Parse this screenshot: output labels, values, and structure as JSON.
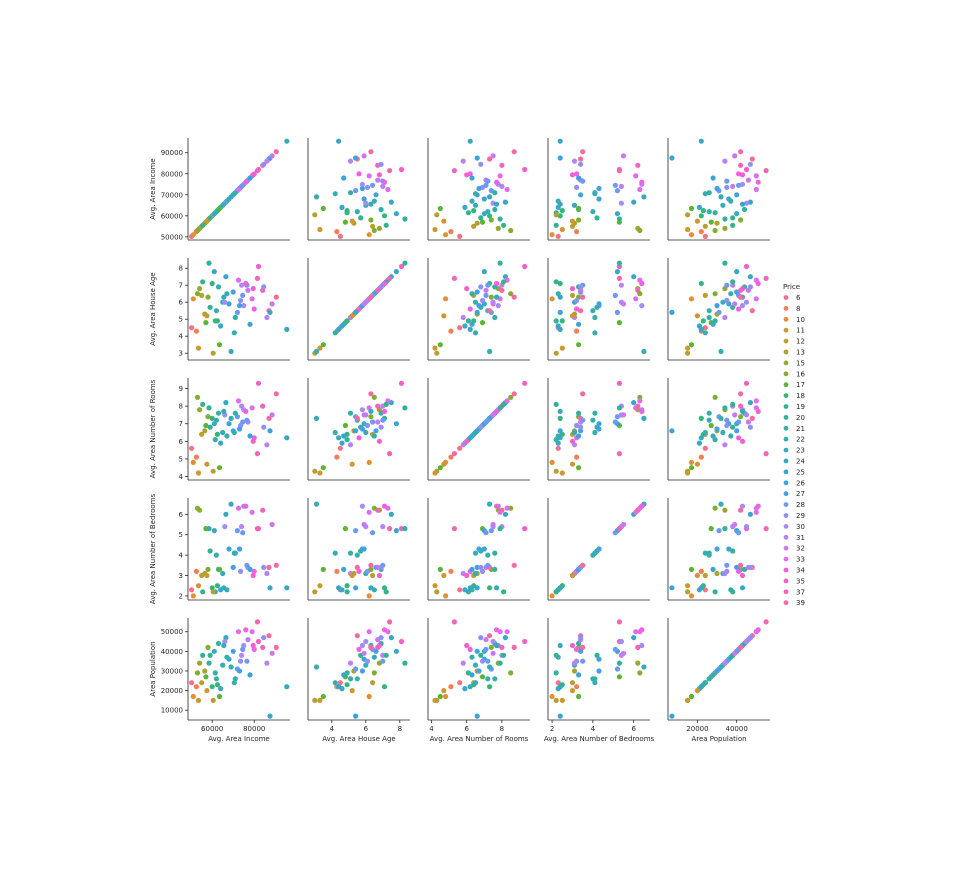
{
  "figure": {
    "legend_title": "Price"
  },
  "chart_data": {
    "type": "pairplot",
    "hue": "Price",
    "variables": [
      {
        "name": "Avg. Area Income",
        "range": [
          48500,
          97000
        ],
        "ticks": [
          50000,
          60000,
          70000,
          80000,
          90000
        ],
        "xticks": [
          60000,
          80000
        ]
      },
      {
        "name": "Avg. Area House Age",
        "range": [
          2.6,
          8.6
        ],
        "ticks": [
          3,
          4,
          5,
          6,
          7,
          8
        ],
        "xticks": [
          4,
          6,
          8
        ]
      },
      {
        "name": "Avg. Area Number of Rooms",
        "range": [
          3.8,
          9.6
        ],
        "ticks": [
          4,
          5,
          6,
          7,
          8,
          9
        ],
        "xticks": [
          4,
          6,
          8
        ]
      },
      {
        "name": "Avg. Area Number of Bedrooms",
        "range": [
          1.8,
          6.8
        ],
        "ticks": [
          2,
          3,
          4,
          5,
          6
        ],
        "xticks": [
          2,
          4,
          6
        ]
      },
      {
        "name": "Area Population",
        "range": [
          5000,
          57000
        ],
        "ticks": [
          10000,
          20000,
          30000,
          40000,
          50000
        ],
        "xticks": [
          20000,
          40000
        ]
      }
    ],
    "legend": {
      "labels": [
        "6",
        "8",
        "10",
        "11",
        "12",
        "13",
        "15",
        "16",
        "17",
        "18",
        "19",
        "20",
        "21",
        "22",
        "23",
        "24",
        "25",
        "26",
        "27",
        "28",
        "29",
        "30",
        "31",
        "32",
        "33",
        "34",
        "35",
        "37",
        "39"
      ],
      "colors": [
        "#f77189",
        "#f47f52",
        "#e48f31",
        "#cf9731",
        "#bb9e31",
        "#a9a431",
        "#97a831",
        "#80ae31",
        "#5cb433",
        "#34b67a",
        "#32b38e",
        "#32b29b",
        "#33b0a6",
        "#34aeaf",
        "#35acb8",
        "#36a9c1",
        "#38a7cc",
        "#3aa4d8",
        "#44a0e6",
        "#6b99f3",
        "#8e91f4",
        "#a58cf4",
        "#b982f4",
        "#cb77f4",
        "#e06cf4",
        "#f05fe5",
        "#f55fcc",
        "#f565b5",
        "#f66a9f"
      ]
    },
    "grid": false,
    "legend_position": "right",
    "points": [
      {
        "Price": 6,
        "Avg. Area Income": 50200,
        "Avg. Area House Age": 4.5,
        "Avg. Area Number of Rooms": 5.6,
        "Avg. Area Number of Bedrooms": 2.3,
        "Area Population": 24000
      },
      {
        "Price": 8,
        "Avg. Area Income": 52500,
        "Avg. Area House Age": 4.3,
        "Avg. Area Number of Rooms": 5.1,
        "Avg. Area Number of Bedrooms": 3.2,
        "Area Population": 22000
      },
      {
        "Price": 10,
        "Avg. Area Income": 51000,
        "Avg. Area House Age": 6.2,
        "Avg. Area Number of Rooms": 4.8,
        "Avg. Area Number of Bedrooms": 2.0,
        "Area Population": 17000
      },
      {
        "Price": 11,
        "Avg. Area Income": 53500,
        "Avg. Area House Age": 3.3,
        "Avg. Area Number of Rooms": 4.2,
        "Avg. Area Number of Bedrooms": 2.5,
        "Area Population": 15000
      },
      {
        "Price": 12,
        "Avg. Area Income": 55000,
        "Avg. Area House Age": 6.4,
        "Avg. Area Number of Rooms": 6.4,
        "Avg. Area Number of Bedrooms": 3.0,
        "Area Population": 24000
      },
      {
        "Price": 13,
        "Avg. Area Income": 56500,
        "Avg. Area House Age": 5.3,
        "Avg. Area Number of Rooms": 6.6,
        "Avg. Area Number of Bedrooms": 3.1,
        "Area Population": 30000
      },
      {
        "Price": 15,
        "Avg. Area Income": 54000,
        "Avg. Area House Age": 6.8,
        "Avg. Area Number of Rooms": 7.8,
        "Avg. Area Number of Bedrooms": 6.2,
        "Area Population": 34000
      },
      {
        "Price": 16,
        "Avg. Area Income": 58000,
        "Avg. Area House Age": 6.3,
        "Avg. Area Number of Rooms": 7.4,
        "Avg. Area Number of Bedrooms": 3.3,
        "Area Population": 42000
      },
      {
        "Price": 17,
        "Avg. Area Income": 57000,
        "Avg. Area House Age": 4.8,
        "Avg. Area Number of Rooms": 6.9,
        "Avg. Area Number of Bedrooms": 5.3,
        "Area Population": 27000
      },
      {
        "Price": 18,
        "Avg. Area Income": 60000,
        "Avg. Area House Age": 7.1,
        "Avg. Area Number of Rooms": 7.3,
        "Avg. Area Number of Bedrooms": 2.4,
        "Area Population": 22000
      },
      {
        "Price": 19,
        "Avg. Area Income": 59000,
        "Avg. Area House Age": 5.7,
        "Avg. Area Number of Rooms": 6.8,
        "Avg. Area Number of Bedrooms": 4.2,
        "Area Population": 38000
      },
      {
        "Price": 20,
        "Avg. Area Income": 61500,
        "Avg. Area House Age": 4.9,
        "Avg. Area Number of Rooms": 6.1,
        "Avg. Area Number of Bedrooms": 2.2,
        "Area Population": 29000
      },
      {
        "Price": 21,
        "Avg. Area Income": 63000,
        "Avg. Area House Age": 6.9,
        "Avg. Area Number of Rooms": 7.6,
        "Avg. Area Number of Bedrooms": 3.3,
        "Area Population": 44000
      },
      {
        "Price": 22,
        "Avg. Area Income": 62000,
        "Avg. Area House Age": 5.5,
        "Avg. Area Number of Rooms": 7.2,
        "Avg. Area Number of Bedrooms": 4.0,
        "Area Population": 26000
      },
      {
        "Price": 23,
        "Avg. Area Income": 65000,
        "Avg. Area House Age": 6.0,
        "Avg. Area Number of Rooms": 6.5,
        "Avg. Area Number of Bedrooms": 3.1,
        "Area Population": 33000
      },
      {
        "Price": 24,
        "Avg. Area Income": 66500,
        "Avg. Area House Age": 7.5,
        "Avg. Area Number of Rooms": 8.2,
        "Avg. Area Number of Bedrooms": 6.0,
        "Area Population": 47000
      },
      {
        "Price": 25,
        "Avg. Area Income": 64000,
        "Avg. Area House Age": 4.6,
        "Avg. Area Number of Rooms": 5.9,
        "Avg. Area Number of Bedrooms": 2.3,
        "Area Population": 21000
      },
      {
        "Price": 26,
        "Avg. Area Income": 68000,
        "Avg. Area House Age": 5.9,
        "Avg. Area Number of Rooms": 7.0,
        "Avg. Area Number of Bedrooms": 4.3,
        "Area Population": 36000
      },
      {
        "Price": 27,
        "Avg. Area Income": 70000,
        "Avg. Area House Age": 6.6,
        "Avg. Area Number of Rooms": 6.6,
        "Avg. Area Number of Bedrooms": 3.4,
        "Area Population": 40000
      },
      {
        "Price": 28,
        "Avg. Area Income": 72000,
        "Avg. Area House Age": 5.4,
        "Avg. Area Number of Rooms": 7.4,
        "Avg. Area Number of Bedrooms": 5.2,
        "Area Population": 31000
      },
      {
        "Price": 29,
        "Avg. Area Income": 73500,
        "Avg. Area House Age": 6.1,
        "Avg. Area Number of Rooms": 6.9,
        "Avg. Area Number of Bedrooms": 3.2,
        "Area Population": 35000
      },
      {
        "Price": 30,
        "Avg. Area Income": 75000,
        "Avg. Area House Age": 5.8,
        "Avg. Area Number of Rooms": 7.8,
        "Avg. Area Number of Bedrooms": 6.4,
        "Area Population": 43000
      },
      {
        "Price": 31,
        "Avg. Area Income": 74000,
        "Avg. Area House Age": 7.0,
        "Avg. Area Number of Rooms": 8.0,
        "Avg. Area Number of Bedrooms": 5.4,
        "Area Population": 38000
      },
      {
        "Price": 32,
        "Avg. Area Income": 77000,
        "Avg. Area House Age": 6.7,
        "Avg. Area Number of Rooms": 7.1,
        "Avg. Area Number of Bedrooms": 3.4,
        "Area Population": 46000
      },
      {
        "Price": 33,
        "Avg. Area Income": 79000,
        "Avg. Area House Age": 6.2,
        "Avg. Area Number of Rooms": 7.9,
        "Avg. Area Number of Bedrooms": 6.1,
        "Area Population": 50000
      },
      {
        "Price": 34,
        "Avg. Area Income": 80000,
        "Avg. Area House Age": 5.6,
        "Avg. Area Number of Rooms": 6.2,
        "Avg. Area Number of Bedrooms": 3.2,
        "Area Population": 41000
      },
      {
        "Price": 35,
        "Avg. Area Income": 82000,
        "Avg. Area House Age": 8.1,
        "Avg. Area Number of Rooms": 9.3,
        "Avg. Area Number of Bedrooms": 5.3,
        "Area Population": 45000
      },
      {
        "Price": 37,
        "Avg. Area Income": 84000,
        "Avg. Area House Age": 6.7,
        "Avg. Area Number of Rooms": 8.0,
        "Avg. Area Number of Bedrooms": 6.2,
        "Area Population": 42000
      },
      {
        "Price": 39,
        "Avg. Area Income": 87000,
        "Avg. Area House Age": 5.5,
        "Avg. Area Number of Rooms": 7.3,
        "Avg. Area Number of Bedrooms": 3.4,
        "Area Population": 48000
      },
      {
        "Price": 12,
        "Avg. Area Income": 60500,
        "Avg. Area House Age": 3.0,
        "Avg. Area Number of Rooms": 4.3,
        "Avg. Area Number of Bedrooms": 2.2,
        "Area Population": 15000
      },
      {
        "Price": 16,
        "Avg. Area Income": 53000,
        "Avg. Area House Age": 6.5,
        "Avg. Area Number of Rooms": 8.5,
        "Avg. Area Number of Bedrooms": 6.3,
        "Area Population": 29000
      },
      {
        "Price": 18,
        "Avg. Area Income": 62500,
        "Avg. Area House Age": 4.9,
        "Avg. Area Number of Rooms": 6.4,
        "Avg. Area Number of Bedrooms": 2.5,
        "Area Population": 23000
      },
      {
        "Price": 20,
        "Avg. Area Income": 58500,
        "Avg. Area House Age": 8.3,
        "Avg. Area Number of Rooms": 7.9,
        "Avg. Area Number of Bedrooms": 5.3,
        "Area Population": 34000
      },
      {
        "Price": 21,
        "Avg. Area Income": 71000,
        "Avg. Area House Age": 5.1,
        "Avg. Area Number of Rooms": 7.6,
        "Avg. Area Number of Bedrooms": 4.1,
        "Area Population": 26000
      },
      {
        "Price": 22,
        "Avg. Area Income": 67000,
        "Avg. Area House Age": 6.5,
        "Avg. Area Number of Rooms": 6.3,
        "Avg. Area Number of Bedrooms": 2.3,
        "Area Population": 37000
      },
      {
        "Price": 23,
        "Avg. Area Income": 69000,
        "Avg. Area House Age": 3.1,
        "Avg. Area Number of Rooms": 7.3,
        "Avg. Area Number of Bedrooms": 6.5,
        "Area Population": 32000
      },
      {
        "Price": 24,
        "Avg. Area Income": 95500,
        "Avg. Area House Age": 4.4,
        "Avg. Area Number of Rooms": 6.2,
        "Avg. Area Number of Bedrooms": 2.4,
        "Area Population": 22000
      },
      {
        "Price": 25,
        "Avg. Area Income": 61000,
        "Avg. Area House Age": 7.8,
        "Avg. Area Number of Rooms": 7.0,
        "Avg. Area Number of Bedrooms": 5.2,
        "Area Population": 40000
      },
      {
        "Price": 26,
        "Avg. Area Income": 87500,
        "Avg. Area House Age": 5.4,
        "Avg. Area Number of Rooms": 6.6,
        "Avg. Area Number of Bedrooms": 2.4,
        "Area Population": 7000
      },
      {
        "Price": 27,
        "Avg. Area Income": 73000,
        "Avg. Area House Age": 5.8,
        "Avg. Area Number of Rooms": 6.7,
        "Avg. Area Number of Bedrooms": 4.3,
        "Area Population": 30000
      },
      {
        "Price": 28,
        "Avg. Area Income": 76500,
        "Avg. Area House Age": 7.0,
        "Avg. Area Number of Rooms": 7.2,
        "Avg. Area Number of Bedrooms": 3.5,
        "Area Population": 35000
      },
      {
        "Price": 30,
        "Avg. Area Income": 66000,
        "Avg. Area House Age": 6.0,
        "Avg. Area Number of Rooms": 7.5,
        "Avg. Area Number of Bedrooms": 5.4,
        "Area Population": 45000
      },
      {
        "Price": 31,
        "Avg. Area Income": 86000,
        "Avg. Area House Age": 5.1,
        "Avg. Area Number of Rooms": 5.8,
        "Avg. Area Number of Bedrooms": 3.1,
        "Area Population": 34000
      },
      {
        "Price": 33,
        "Avg. Area Income": 72500,
        "Avg. Area House Age": 7.3,
        "Avg. Area Number of Rooms": 8.3,
        "Avg. Area Number of Bedrooms": 6.3,
        "Area Population": 50000
      },
      {
        "Price": 35,
        "Avg. Area Income": 79500,
        "Avg. Area House Age": 6.8,
        "Avg. Area Number of Rooms": 6.0,
        "Avg. Area Number of Bedrooms": 3.0,
        "Area Population": 43000
      },
      {
        "Price": 37,
        "Avg. Area Income": 81500,
        "Avg. Area House Age": 7.4,
        "Avg. Area Number of Rooms": 5.3,
        "Avg. Area Number of Bedrooms": 5.3,
        "Area Population": 55000
      },
      {
        "Price": 11,
        "Avg. Area Income": 57500,
        "Avg. Area House Age": 5.2,
        "Avg. Area Number of Rooms": 4.7,
        "Avg. Area Number of Bedrooms": 3.0,
        "Area Population": 20000
      },
      {
        "Price": 17,
        "Avg. Area Income": 63500,
        "Avg. Area House Age": 3.5,
        "Avg. Area Number of Rooms": 4.5,
        "Avg. Area Number of Bedrooms": 3.3,
        "Area Population": 17000
      },
      {
        "Price": 19,
        "Avg. Area Income": 55500,
        "Avg. Area House Age": 7.2,
        "Avg. Area Number of Rooms": 8.1,
        "Avg. Area Number of Bedrooms": 2.2,
        "Area Population": 38000
      },
      {
        "Price": 22,
        "Avg. Area Income": 70500,
        "Avg. Area House Age": 4.2,
        "Avg. Area Number of Rooms": 6.5,
        "Avg. Area Number of Bedrooms": 4.1,
        "Area Population": 24000
      },
      {
        "Price": 24,
        "Avg. Area Income": 65500,
        "Avg. Area House Age": 6.3,
        "Avg. Area Number of Rooms": 7.7,
        "Avg. Area Number of Bedrooms": 2.4,
        "Area Population": 43000
      },
      {
        "Price": 26,
        "Avg. Area Income": 78000,
        "Avg. Area House Age": 4.7,
        "Avg. Area Number of Rooms": 6.3,
        "Avg. Area Number of Bedrooms": 3.3,
        "Area Population": 28000
      },
      {
        "Price": 28,
        "Avg. Area Income": 74500,
        "Avg. Area House Age": 6.4,
        "Avg. Area Number of Rooms": 7.1,
        "Avg. Area Number of Bedrooms": 5.1,
        "Area Population": 41000
      },
      {
        "Price": 29,
        "Avg. Area Income": 84500,
        "Avg. Area House Age": 6.9,
        "Avg. Area Number of Rooms": 6.8,
        "Avg. Area Number of Bedrooms": 3.4,
        "Area Population": 47000
      },
      {
        "Price": 32,
        "Avg. Area Income": 88500,
        "Avg. Area House Age": 5.9,
        "Avg. Area Number of Rooms": 7.5,
        "Avg. Area Number of Bedrooms": 5.5,
        "Area Population": 39000
      },
      {
        "Price": 34,
        "Avg. Area Income": 76000,
        "Avg. Area House Age": 7.1,
        "Avg. Area Number of Rooms": 7.7,
        "Avg. Area Number of Bedrooms": 6.4,
        "Area Population": 51000
      },
      {
        "Price": 39,
        "Avg. Area Income": 90500,
        "Avg. Area House Age": 6.3,
        "Avg. Area Number of Rooms": 8.7,
        "Avg. Area Number of Bedrooms": 3.5,
        "Area Population": 42000
      }
    ]
  }
}
